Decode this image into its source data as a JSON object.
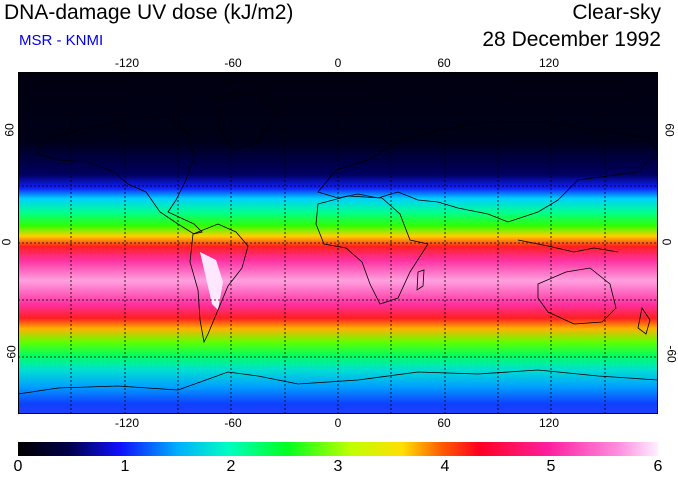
{
  "header": {
    "title": "DNA-damage UV dose (kJ/m2)",
    "subtitle": "MSR - KNMI",
    "condition": "Clear-sky",
    "date": "28 December 1992"
  },
  "map": {
    "lon_labels": [
      "-120",
      "-60",
      "0",
      "60",
      "120"
    ],
    "lat_labels": [
      "60",
      "0",
      "-60"
    ]
  },
  "colorbar": {
    "labels": [
      "0",
      "1",
      "2",
      "3",
      "4",
      "5",
      "6"
    ]
  },
  "colors": {
    "subtitle": "#0000ee",
    "land_outline": "#000000",
    "grid": "#000000"
  }
}
